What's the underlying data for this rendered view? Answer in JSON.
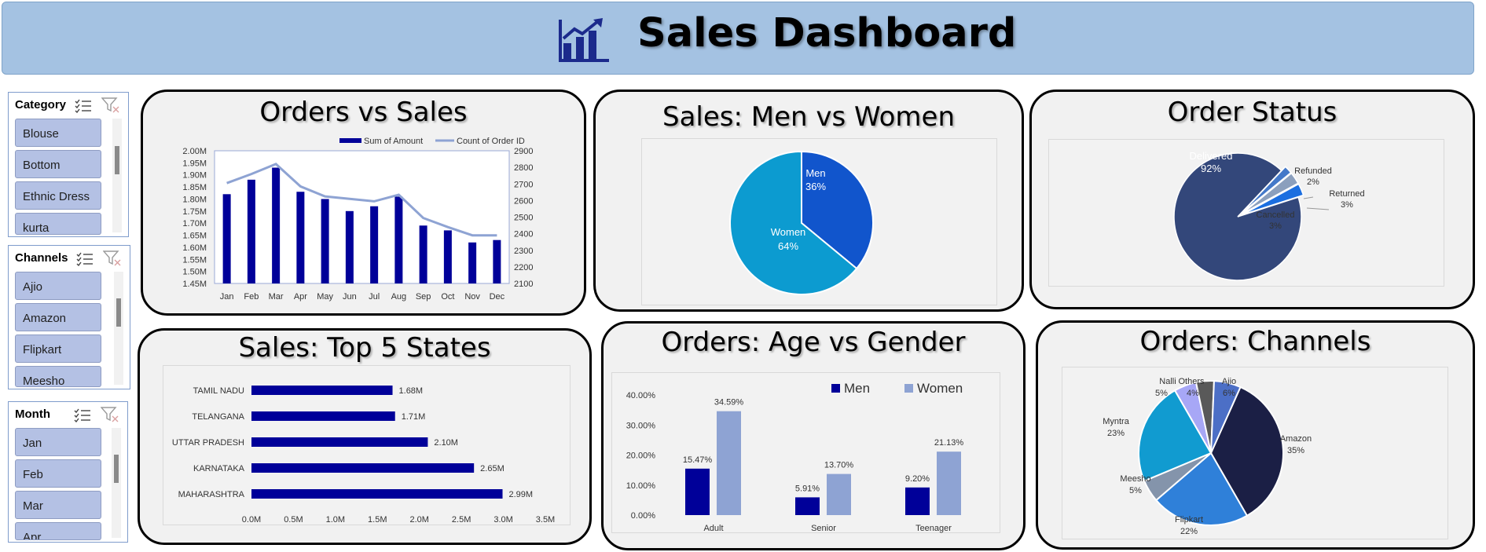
{
  "header": {
    "title": "Sales Dashboard",
    "icon": "bar-chart-growth-icon"
  },
  "slicers": [
    {
      "title": "Category",
      "items": [
        "Blouse",
        "Bottom",
        "Ethnic Dress",
        "kurta"
      ],
      "scroll_position": 0.1
    },
    {
      "title": "Channels",
      "items": [
        "Ajio",
        "Amazon",
        "Flipkart",
        "Meesho"
      ],
      "scroll_position": 0.1
    },
    {
      "title": "Month",
      "items": [
        "Jan",
        "Feb",
        "Mar",
        "Apr"
      ],
      "scroll_position": 0.1
    }
  ],
  "cards": {
    "orders_sales": {
      "title": "Orders vs Sales"
    },
    "men_women": {
      "title": "Sales: Men vs Women"
    },
    "order_status": {
      "title": "Order Status"
    },
    "top_states": {
      "title": "Sales: Top 5 States"
    },
    "age_gender": {
      "title": "Orders: Age vs Gender"
    },
    "channels": {
      "title": "Orders: Channels"
    }
  },
  "colors": {
    "banner": "#a4c2e2",
    "navy": "#000099",
    "lavender": "#8ea3d3",
    "men_blue": "#1155cc",
    "women_blue": "#0c9bd0",
    "delivered": "#33477a"
  },
  "chart_data": [
    {
      "type": "bar",
      "categories": [
        "Jan",
        "Feb",
        "Mar",
        "Apr",
        "May",
        "Jun",
        "Jul",
        "Aug",
        "Sep",
        "Oct",
        "Nov",
        "Dec"
      ],
      "series": [
        {
          "name": "Sum of Amount",
          "type": "bar",
          "values": [
            1.82,
            1.88,
            1.93,
            1.83,
            1.8,
            1.75,
            1.77,
            1.81,
            1.69,
            1.67,
            1.62,
            1.63
          ]
        },
        {
          "name": "Count of Order ID",
          "type": "line",
          "axis": "secondary",
          "values": [
            2705,
            2760,
            2820,
            2685,
            2625,
            2610,
            2595,
            2635,
            2495,
            2440,
            2390,
            2390
          ]
        }
      ],
      "ylim": [
        1.45,
        2.0
      ],
      "yticks": [
        "1.45M",
        "1.50M",
        "1.55M",
        "1.60M",
        "1.65M",
        "1.70M",
        "1.75M",
        "1.80M",
        "1.85M",
        "1.90M",
        "1.95M",
        "2.00M"
      ],
      "y2lim": [
        2100,
        2900
      ],
      "y2ticks": [
        "2100",
        "2200",
        "2300",
        "2400",
        "2500",
        "2600",
        "2700",
        "2800",
        "2900"
      ],
      "legend": "top-right"
    },
    {
      "type": "pie",
      "categories": [
        "Men",
        "Women"
      ],
      "values": [
        36,
        64
      ],
      "labels": [
        "36%",
        "64%"
      ]
    },
    {
      "type": "pie",
      "categories": [
        "Delivered",
        "Refunded",
        "Returned",
        "Cancelled"
      ],
      "values": [
        92,
        2,
        3,
        3
      ],
      "labels": [
        "92%",
        "2%",
        "3%",
        "3%"
      ]
    },
    {
      "type": "bar",
      "orientation": "horizontal",
      "categories": [
        "TAMIL NADU",
        "TELANGANA",
        "UTTAR PRADESH",
        "KARNATAKA",
        "MAHARASHTRA"
      ],
      "values": [
        1.68,
        1.71,
        2.1,
        2.65,
        2.99
      ],
      "labels": [
        "1.68M",
        "1.71M",
        "2.10M",
        "2.65M",
        "2.99M"
      ],
      "xlim": [
        0,
        3.5
      ],
      "xticks": [
        "0.0M",
        "0.5M",
        "1.0M",
        "1.5M",
        "2.0M",
        "2.5M",
        "3.0M",
        "3.5M"
      ]
    },
    {
      "type": "bar",
      "categories": [
        "Adult",
        "Senior",
        "Teenager"
      ],
      "series": [
        {
          "name": "Men",
          "values": [
            15.47,
            5.91,
            9.2
          ],
          "labels": [
            "15.47%",
            "5.91%",
            "9.20%"
          ]
        },
        {
          "name": "Women",
          "values": [
            34.59,
            13.7,
            21.13
          ],
          "labels": [
            "34.59%",
            "13.70%",
            "21.13%"
          ]
        }
      ],
      "ylim": [
        0,
        40
      ],
      "yticks": [
        "0.00%",
        "10.00%",
        "20.00%",
        "30.00%",
        "40.00%"
      ],
      "legend": "top-right"
    },
    {
      "type": "pie",
      "categories": [
        "Amazon",
        "Flipkart",
        "Meesho",
        "Myntra",
        "Nalli",
        "Others",
        "Ajio"
      ],
      "values": [
        35,
        22,
        5,
        23,
        5,
        4,
        6
      ],
      "labels": [
        "35%",
        "22%",
        "5%",
        "23%",
        "5%",
        "4%",
        "6%"
      ]
    }
  ]
}
